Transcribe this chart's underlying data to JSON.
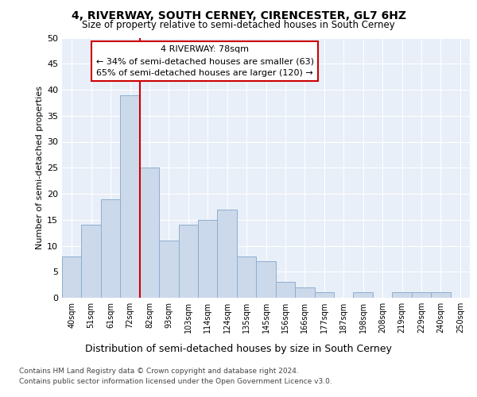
{
  "title1": "4, RIVERWAY, SOUTH CERNEY, CIRENCESTER, GL7 6HZ",
  "title2": "Size of property relative to semi-detached houses in South Cerney",
  "xlabel": "Distribution of semi-detached houses by size in South Cerney",
  "ylabel": "Number of semi-detached properties",
  "categories": [
    "40sqm",
    "51sqm",
    "61sqm",
    "72sqm",
    "82sqm",
    "93sqm",
    "103sqm",
    "114sqm",
    "124sqm",
    "135sqm",
    "145sqm",
    "156sqm",
    "166sqm",
    "177sqm",
    "187sqm",
    "198sqm",
    "208sqm",
    "219sqm",
    "229sqm",
    "240sqm",
    "250sqm"
  ],
  "values": [
    8,
    14,
    19,
    39,
    25,
    11,
    14,
    15,
    17,
    8,
    7,
    3,
    2,
    1,
    0,
    1,
    0,
    1,
    1,
    1,
    0
  ],
  "bar_color": "#ccd9ea",
  "bar_edge_color": "#8eaed0",
  "vline_color": "#cc0000",
  "vline_x_idx": 4,
  "annotation_title": "4 RIVERWAY: 78sqm",
  "annotation_line1": "← 34% of semi-detached houses are smaller (63)",
  "annotation_line2": "65% of semi-detached houses are larger (120) →",
  "annotation_box_color": "#ffffff",
  "annotation_box_edge": "#cc0000",
  "ylim": [
    0,
    50
  ],
  "yticks": [
    0,
    5,
    10,
    15,
    20,
    25,
    30,
    35,
    40,
    45,
    50
  ],
  "footer1": "Contains HM Land Registry data © Crown copyright and database right 2024.",
  "footer2": "Contains public sector information licensed under the Open Government Licence v3.0.",
  "bg_color": "#ffffff",
  "plot_bg_color": "#e8eff8",
  "grid_color": "#ffffff"
}
